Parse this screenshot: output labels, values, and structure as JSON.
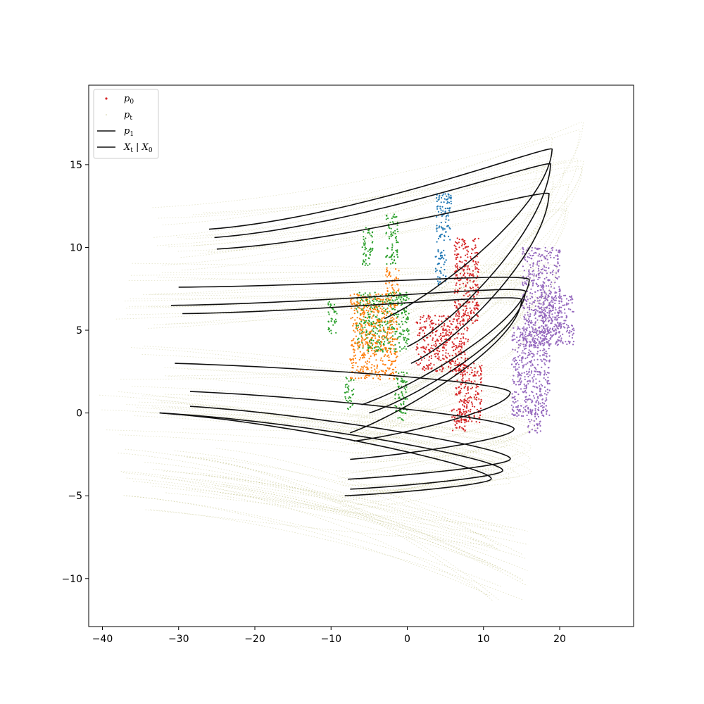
{
  "chart_data": {
    "type": "scatter",
    "title": "",
    "xlabel": "",
    "ylabel": "",
    "xlim": [
      -41.8,
      29.7
    ],
    "ylim": [
      -12.9,
      19.8
    ],
    "xticks": [
      -40,
      -30,
      -20,
      -10,
      0,
      10,
      20
    ],
    "xtick_labels": [
      "−40",
      "−30",
      "−20",
      "−10",
      "0",
      "10",
      "20"
    ],
    "yticks": [
      -10,
      -5,
      0,
      5,
      10,
      15
    ],
    "ytick_labels": [
      "−10",
      "−5",
      "0",
      "5",
      "10",
      "15"
    ],
    "grid": false,
    "legend_placement": "upper-left",
    "legend": [
      {
        "label": "p0",
        "base": "p",
        "sub": "0",
        "kind": "marker",
        "color": "#d62728"
      },
      {
        "label": "pt",
        "base": "p",
        "sub": "t",
        "kind": "faint-marker",
        "color": "#808000"
      },
      {
        "label": "p1",
        "base": "p",
        "sub": "1",
        "kind": "line",
        "color": "#111111"
      },
      {
        "label": "Xt | X0",
        "base": "X",
        "sub": "t",
        "mid": " | ",
        "base2": "X",
        "sub2": "0",
        "kind": "line",
        "color": "#111111"
      }
    ],
    "clusters": [
      {
        "color": "#2ca02c",
        "blobs": [
          [
            -3.2,
            5.5,
            7.0,
            3.6
          ],
          [
            -9.8,
            5.8,
            1.2,
            2.0
          ],
          [
            -2.0,
            10.5,
            1.6,
            3.0
          ],
          [
            -5.2,
            10.0,
            1.4,
            2.4
          ],
          [
            -0.8,
            1.0,
            1.6,
            3.0
          ],
          [
            -7.6,
            1.2,
            1.2,
            2.0
          ]
        ]
      },
      {
        "color": "#ff7f0e",
        "blobs": [
          [
            -4.4,
            4.6,
            6.2,
            5.2
          ],
          [
            -2.0,
            8.0,
            1.8,
            1.6
          ]
        ]
      },
      {
        "color": "#1f77b4",
        "blobs": [
          [
            4.8,
            11.8,
            2.0,
            3.0
          ],
          [
            4.4,
            8.8,
            1.4,
            2.2
          ]
        ]
      },
      {
        "color": "#d62728",
        "blobs": [
          [
            4.6,
            4.2,
            6.8,
            3.4
          ],
          [
            7.8,
            8.0,
            3.2,
            5.2
          ],
          [
            8.0,
            1.2,
            3.6,
            3.6
          ],
          [
            6.8,
            -0.4,
            2.0,
            1.4
          ]
        ]
      },
      {
        "color": "#9467bd",
        "blobs": [
          [
            17.6,
            7.0,
            5.0,
            6.0
          ],
          [
            16.2,
            2.5,
            5.0,
            5.4
          ],
          [
            19.6,
            5.6,
            4.6,
            3.0
          ],
          [
            16.8,
            -0.5,
            2.0,
            1.4
          ]
        ]
      }
    ],
    "trajectories": [
      {
        "start": [
          -26.0,
          11.1
        ],
        "turn": [
          19.0,
          15.9
        ],
        "end": [
          -3.0,
          5.7
        ]
      },
      {
        "start": [
          -25.3,
          10.6
        ],
        "turn": [
          18.8,
          15.0
        ],
        "end": [
          0.0,
          4.0
        ]
      },
      {
        "start": [
          -25.0,
          9.9
        ],
        "turn": [
          18.6,
          13.2
        ],
        "end": [
          0.5,
          3.0
        ]
      },
      {
        "start": [
          -30.0,
          7.6
        ],
        "turn": [
          16.0,
          8.0
        ],
        "end": [
          -6.0,
          0.5
        ]
      },
      {
        "start": [
          -31.0,
          6.5
        ],
        "turn": [
          15.5,
          7.3
        ],
        "end": [
          -5.0,
          0.0
        ]
      },
      {
        "start": [
          -29.5,
          6.0
        ],
        "turn": [
          15.0,
          6.8
        ],
        "end": [
          -7.5,
          -1.2
        ]
      },
      {
        "start": [
          -30.5,
          3.0
        ],
        "turn": [
          13.5,
          1.2
        ],
        "end": [
          -7.0,
          -1.7
        ]
      },
      {
        "start": [
          -28.5,
          1.3
        ],
        "turn": [
          14.0,
          -1.0
        ],
        "end": [
          -7.5,
          -2.8
        ]
      },
      {
        "start": [
          -28.5,
          0.4
        ],
        "turn": [
          13.5,
          -2.8
        ],
        "end": [
          -7.8,
          -4.0
        ]
      },
      {
        "start": [
          -32.5,
          0.0
        ],
        "turn": [
          11.0,
          -4.0
        ],
        "end": [
          -8.2,
          -5.0
        ]
      },
      {
        "start": [
          -32.5,
          0.0
        ],
        "turn": [
          12.5,
          -3.5
        ],
        "end": [
          -7.5,
          -4.6
        ]
      }
    ]
  }
}
